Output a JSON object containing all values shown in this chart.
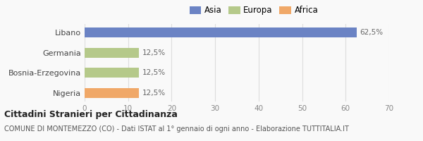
{
  "categories": [
    "Nigeria",
    "Bosnia-Erzegovina",
    "Germania",
    "Libano"
  ],
  "values": [
    12.5,
    12.5,
    12.5,
    62.5
  ],
  "colors": [
    "#f0a868",
    "#b5c98a",
    "#b5c98a",
    "#6b83c4"
  ],
  "legend": [
    {
      "label": "Asia",
      "color": "#6b83c4"
    },
    {
      "label": "Europa",
      "color": "#b5c98a"
    },
    {
      "label": "Africa",
      "color": "#f0a868"
    }
  ],
  "xlim": [
    0,
    70
  ],
  "xticks": [
    0,
    10,
    20,
    30,
    40,
    50,
    60,
    70
  ],
  "bar_labels": [
    "12,5%",
    "12,5%",
    "12,5%",
    "62,5%"
  ],
  "title_bold": "Cittadini Stranieri per Cittadinanza",
  "subtitle": "COMUNE DI MONTEMEZZO (CO) - Dati ISTAT al 1° gennaio di ogni anno - Elaborazione TUTTITALIA.IT",
  "background_color": "#f9f9f9",
  "grid_color": "#dddddd",
  "bar_height": 0.5,
  "value_label_fontsize": 7.5,
  "tick_fontsize": 7.5,
  "ylabel_fontsize": 8,
  "title_fontsize": 9,
  "subtitle_fontsize": 7,
  "legend_fontsize": 8.5
}
